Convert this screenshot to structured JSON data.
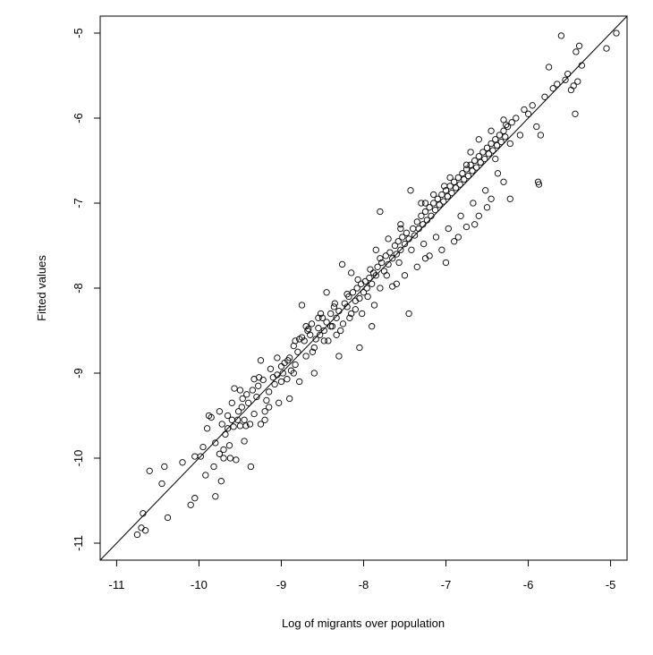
{
  "chart_data": {
    "type": "scatter",
    "title": "",
    "xlabel": "Log of migrants over population",
    "ylabel": "Fitted values",
    "xlim": [
      -11.2,
      -4.8
    ],
    "ylim": [
      -11.2,
      -4.8
    ],
    "x_ticks": [
      -11,
      -10,
      -9,
      -8,
      -7,
      -6,
      -5
    ],
    "y_ticks": [
      -11,
      -10,
      -9,
      -8,
      -7,
      -6,
      -5
    ],
    "reference_line": {
      "slope": 1,
      "intercept": 0
    },
    "grid": false,
    "legend": "none",
    "marker": "open-circle",
    "colors": {
      "points": "#000000",
      "line": "#000000",
      "frame": "#000000"
    },
    "points": [
      [
        -10.75,
        -10.9
      ],
      [
        -10.7,
        -10.82
      ],
      [
        -10.65,
        -10.85
      ],
      [
        -10.68,
        -10.65
      ],
      [
        -10.6,
        -10.15
      ],
      [
        -10.45,
        -10.3
      ],
      [
        -10.42,
        -10.1
      ],
      [
        -10.38,
        -10.7
      ],
      [
        -10.2,
        -10.05
      ],
      [
        -10.1,
        -10.55
      ],
      [
        -10.05,
        -10.47
      ],
      [
        -10.05,
        -9.98
      ],
      [
        -9.98,
        -9.98
      ],
      [
        -9.95,
        -9.87
      ],
      [
        -9.92,
        -10.2
      ],
      [
        -9.88,
        -9.5
      ],
      [
        -9.82,
        -10.1
      ],
      [
        -9.8,
        -10.45
      ],
      [
        -9.8,
        -9.82
      ],
      [
        -9.75,
        -9.95
      ],
      [
        -9.73,
        -10.27
      ],
      [
        -9.7,
        -9.9
      ],
      [
        -9.68,
        -9.72
      ],
      [
        -9.65,
        -9.65
      ],
      [
        -9.63,
        -9.85
      ],
      [
        -9.62,
        -10.0
      ],
      [
        -9.6,
        -9.55
      ],
      [
        -9.58,
        -9.63
      ],
      [
        -9.55,
        -10.02
      ],
      [
        -9.53,
        -9.55
      ],
      [
        -9.52,
        -9.45
      ],
      [
        -9.5,
        -9.62
      ],
      [
        -9.48,
        -9.4
      ],
      [
        -9.47,
        -9.3
      ],
      [
        -9.45,
        -9.55
      ],
      [
        -9.42,
        -9.25
      ],
      [
        -9.4,
        -9.35
      ],
      [
        -9.38,
        -9.6
      ],
      [
        -9.37,
        -10.1
      ],
      [
        -9.35,
        -9.2
      ],
      [
        -9.33,
        -9.07
      ],
      [
        -9.3,
        -9.28
      ],
      [
        -9.28,
        -9.15
      ],
      [
        -9.25,
        -9.6
      ],
      [
        -9.22,
        -9.08
      ],
      [
        -9.2,
        -9.45
      ],
      [
        -9.18,
        -9.32
      ],
      [
        -9.15,
        -9.22
      ],
      [
        -9.13,
        -8.95
      ],
      [
        -9.1,
        -9.05
      ],
      [
        -9.08,
        -9.13
      ],
      [
        -9.05,
        -9.02
      ],
      [
        -9.03,
        -9.35
      ],
      [
        -9.0,
        -8.92
      ],
      [
        -8.98,
        -9.0
      ],
      [
        -8.96,
        -8.88
      ],
      [
        -8.93,
        -9.07
      ],
      [
        -8.9,
        -8.82
      ],
      [
        -8.88,
        -8.97
      ],
      [
        -8.85,
        -8.68
      ],
      [
        -8.83,
        -8.9
      ],
      [
        -8.8,
        -8.75
      ],
      [
        -8.78,
        -9.1
      ],
      [
        -8.75,
        -8.58
      ],
      [
        -8.72,
        -8.62
      ],
      [
        -8.7,
        -8.8
      ],
      [
        -8.68,
        -8.5
      ],
      [
        -8.65,
        -8.55
      ],
      [
        -8.63,
        -8.42
      ],
      [
        -8.6,
        -8.7
      ],
      [
        -8.58,
        -8.6
      ],
      [
        -8.55,
        -8.47
      ],
      [
        -8.53,
        -8.55
      ],
      [
        -8.5,
        -8.35
      ],
      [
        -8.48,
        -8.5
      ],
      [
        -8.45,
        -8.4
      ],
      [
        -8.43,
        -8.62
      ],
      [
        -8.4,
        -8.3
      ],
      [
        -8.38,
        -8.45
      ],
      [
        -8.36,
        -8.22
      ],
      [
        -8.33,
        -8.35
      ],
      [
        -8.3,
        -8.27
      ],
      [
        -8.28,
        -8.5
      ],
      [
        -8.26,
        -7.72
      ],
      [
        -8.23,
        -8.18
      ],
      [
        -8.2,
        -8.22
      ],
      [
        -8.18,
        -8.1
      ],
      [
        -8.15,
        -8.3
      ],
      [
        -8.13,
        -8.05
      ],
      [
        -8.1,
        -8.15
      ],
      [
        -8.08,
        -8.0
      ],
      [
        -8.05,
        -8.12
      ],
      [
        -8.03,
        -7.95
      ],
      [
        -8.0,
        -8.05
      ],
      [
        -7.98,
        -7.92
      ],
      [
        -7.96,
        -8.0
      ],
      [
        -7.93,
        -7.88
      ],
      [
        -7.9,
        -7.95
      ],
      [
        -7.88,
        -7.82
      ],
      [
        -7.85,
        -7.85
      ],
      [
        -7.83,
        -7.75
      ],
      [
        -7.8,
        -7.1
      ],
      [
        -7.78,
        -7.7
      ],
      [
        -7.75,
        -7.8
      ],
      [
        -7.73,
        -7.62
      ],
      [
        -7.7,
        -7.72
      ],
      [
        -7.68,
        -7.58
      ],
      [
        -7.65,
        -7.65
      ],
      [
        -7.62,
        -7.5
      ],
      [
        -7.6,
        -7.6
      ],
      [
        -7.58,
        -7.45
      ],
      [
        -7.55,
        -7.55
      ],
      [
        -7.53,
        -7.4
      ],
      [
        -7.5,
        -7.48
      ],
      [
        -7.48,
        -7.35
      ],
      [
        -7.45,
        -7.42
      ],
      [
        -7.43,
        -6.85
      ],
      [
        -7.4,
        -7.3
      ],
      [
        -7.38,
        -7.38
      ],
      [
        -7.35,
        -7.22
      ],
      [
        -7.33,
        -7.3
      ],
      [
        -7.3,
        -7.15
      ],
      [
        -7.28,
        -7.25
      ],
      [
        -7.25,
        -7.1
      ],
      [
        -7.23,
        -7.2
      ],
      [
        -7.2,
        -7.05
      ],
      [
        -7.18,
        -7.15
      ],
      [
        -7.15,
        -7.0
      ],
      [
        -7.13,
        -7.08
      ],
      [
        -7.1,
        -6.95
      ],
      [
        -7.08,
        -7.02
      ],
      [
        -7.05,
        -6.9
      ],
      [
        -7.03,
        -6.98
      ],
      [
        -7.0,
        -6.85
      ],
      [
        -6.98,
        -6.92
      ],
      [
        -6.95,
        -6.8
      ],
      [
        -6.93,
        -6.88
      ],
      [
        -6.9,
        -6.75
      ],
      [
        -6.88,
        -6.82
      ],
      [
        -6.85,
        -6.7
      ],
      [
        -6.83,
        -6.78
      ],
      [
        -6.8,
        -6.65
      ],
      [
        -6.78,
        -6.72
      ],
      [
        -6.75,
        -6.6
      ],
      [
        -6.73,
        -6.68
      ],
      [
        -6.7,
        -6.55
      ],
      [
        -6.68,
        -6.62
      ],
      [
        -6.65,
        -6.5
      ],
      [
        -6.63,
        -6.58
      ],
      [
        -6.6,
        -6.45
      ],
      [
        -6.58,
        -6.52
      ],
      [
        -6.55,
        -6.4
      ],
      [
        -6.53,
        -6.48
      ],
      [
        -6.5,
        -6.35
      ],
      [
        -6.48,
        -6.42
      ],
      [
        -6.45,
        -6.3
      ],
      [
        -6.43,
        -6.38
      ],
      [
        -6.4,
        -6.25
      ],
      [
        -6.38,
        -6.32
      ],
      [
        -6.35,
        -6.2
      ],
      [
        -6.33,
        -6.28
      ],
      [
        -6.3,
        -6.15
      ],
      [
        -6.28,
        -6.22
      ],
      [
        -6.25,
        -6.1
      ],
      [
        -6.22,
        -6.95
      ],
      [
        -6.2,
        -6.05
      ],
      [
        -6.15,
        -6.0
      ],
      [
        -6.1,
        -6.2
      ],
      [
        -6.05,
        -5.9
      ],
      [
        -6.0,
        -5.95
      ],
      [
        -5.95,
        -5.85
      ],
      [
        -5.9,
        -6.1
      ],
      [
        -5.88,
        -6.75
      ],
      [
        -5.87,
        -6.78
      ],
      [
        -5.85,
        -6.2
      ],
      [
        -5.8,
        -5.75
      ],
      [
        -5.75,
        -5.4
      ],
      [
        -5.7,
        -5.65
      ],
      [
        -5.65,
        -5.6
      ],
      [
        -5.6,
        -5.03
      ],
      [
        -5.55,
        -5.55
      ],
      [
        -5.52,
        -5.48
      ],
      [
        -5.48,
        -5.67
      ],
      [
        -5.45,
        -5.62
      ],
      [
        -5.43,
        -5.95
      ],
      [
        -5.42,
        -5.22
      ],
      [
        -5.4,
        -5.57
      ],
      [
        -5.38,
        -5.15
      ],
      [
        -5.35,
        -5.38
      ],
      [
        -5.05,
        -5.18
      ],
      [
        -4.93,
        -5.0
      ],
      [
        -9.85,
        -9.52
      ],
      [
        -9.72,
        -9.6
      ],
      [
        -9.65,
        -9.5
      ],
      [
        -9.57,
        -9.18
      ],
      [
        -9.43,
        -9.62
      ],
      [
        -9.33,
        -9.48
      ],
      [
        -9.25,
        -8.85
      ],
      [
        -9.15,
        -9.4
      ],
      [
        -9.0,
        -9.1
      ],
      [
        -8.92,
        -8.85
      ],
      [
        -8.85,
        -9.0
      ],
      [
        -8.78,
        -8.6
      ],
      [
        -8.7,
        -8.45
      ],
      [
        -8.62,
        -8.75
      ],
      [
        -8.55,
        -8.35
      ],
      [
        -8.48,
        -8.62
      ],
      [
        -8.4,
        -8.45
      ],
      [
        -8.33,
        -8.55
      ],
      [
        -8.25,
        -8.42
      ],
      [
        -8.17,
        -8.35
      ],
      [
        -8.1,
        -8.25
      ],
      [
        -8.02,
        -8.3
      ],
      [
        -7.95,
        -8.1
      ],
      [
        -7.87,
        -8.2
      ],
      [
        -7.8,
        -8.0
      ],
      [
        -7.72,
        -7.85
      ],
      [
        -7.65,
        -7.98
      ],
      [
        -7.57,
        -7.7
      ],
      [
        -7.5,
        -7.85
      ],
      [
        -7.42,
        -7.55
      ],
      [
        -7.35,
        -7.75
      ],
      [
        -7.27,
        -7.48
      ],
      [
        -7.2,
        -7.62
      ],
      [
        -7.12,
        -7.4
      ],
      [
        -7.05,
        -7.55
      ],
      [
        -6.97,
        -7.3
      ],
      [
        -6.9,
        -7.45
      ],
      [
        -6.82,
        -7.15
      ],
      [
        -6.75,
        -7.28
      ],
      [
        -6.67,
        -7.0
      ],
      [
        -6.6,
        -7.15
      ],
      [
        -6.52,
        -6.85
      ],
      [
        -6.45,
        -6.95
      ],
      [
        -6.37,
        -6.65
      ],
      [
        -6.3,
        -6.75
      ],
      [
        -7.9,
        -8.45
      ],
      [
        -7.6,
        -7.95
      ],
      [
        -7.45,
        -8.3
      ],
      [
        -7.25,
        -7.65
      ],
      [
        -7.0,
        -7.7
      ],
      [
        -6.85,
        -7.4
      ],
      [
        -6.65,
        -7.25
      ],
      [
        -6.5,
        -7.05
      ],
      [
        -8.05,
        -8.7
      ],
      [
        -8.3,
        -8.8
      ],
      [
        -8.6,
        -9.0
      ],
      [
        -8.9,
        -9.3
      ],
      [
        -9.2,
        -9.55
      ],
      [
        -9.45,
        -9.8
      ],
      [
        -9.7,
        -10.0
      ],
      [
        -8.75,
        -8.2
      ],
      [
        -8.45,
        -8.05
      ],
      [
        -8.15,
        -7.82
      ],
      [
        -7.85,
        -7.55
      ],
      [
        -7.55,
        -7.3
      ],
      [
        -7.25,
        -7.0
      ],
      [
        -6.95,
        -6.7
      ],
      [
        -6.7,
        -6.4
      ],
      [
        -6.45,
        -6.15
      ],
      [
        -6.3,
        -6.02
      ],
      [
        -6.27,
        -6.08
      ],
      [
        -6.22,
        -6.3
      ],
      [
        -6.4,
        -6.48
      ],
      [
        -6.6,
        -6.25
      ],
      [
        -6.75,
        -6.55
      ],
      [
        -7.02,
        -6.8
      ],
      [
        -7.15,
        -6.9
      ],
      [
        -7.3,
        -7.0
      ],
      [
        -7.55,
        -7.25
      ],
      [
        -7.7,
        -7.42
      ],
      [
        -7.8,
        -7.65
      ],
      [
        -7.92,
        -7.78
      ],
      [
        -8.07,
        -7.9
      ],
      [
        -8.2,
        -8.07
      ],
      [
        -8.35,
        -8.18
      ],
      [
        -8.52,
        -8.3
      ],
      [
        -8.67,
        -8.48
      ],
      [
        -8.83,
        -8.62
      ],
      [
        -9.05,
        -8.82
      ],
      [
        -9.27,
        -9.05
      ],
      [
        -9.5,
        -9.2
      ],
      [
        -9.6,
        -9.35
      ],
      [
        -9.75,
        -9.45
      ],
      [
        -9.9,
        -9.65
      ]
    ]
  },
  "labels": {
    "xlabel": "Log of migrants over population",
    "ylabel": "Fitted values"
  }
}
